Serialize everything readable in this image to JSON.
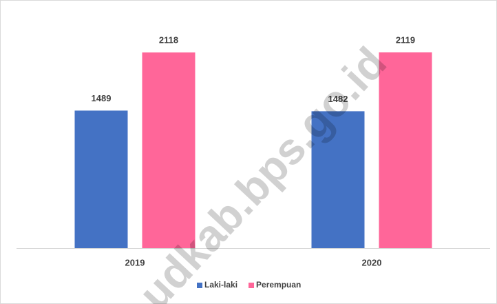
{
  "chart_data": {
    "type": "bar",
    "categories": [
      "2019",
      "2020"
    ],
    "series": [
      {
        "name": "Laki-laki",
        "color": "#4472c4",
        "values": [
          1489,
          1482
        ]
      },
      {
        "name": "Perempuan",
        "color": "#ff6699",
        "values": [
          2118,
          2119
        ]
      }
    ],
    "watermark": "udkab.bps.go.id"
  }
}
